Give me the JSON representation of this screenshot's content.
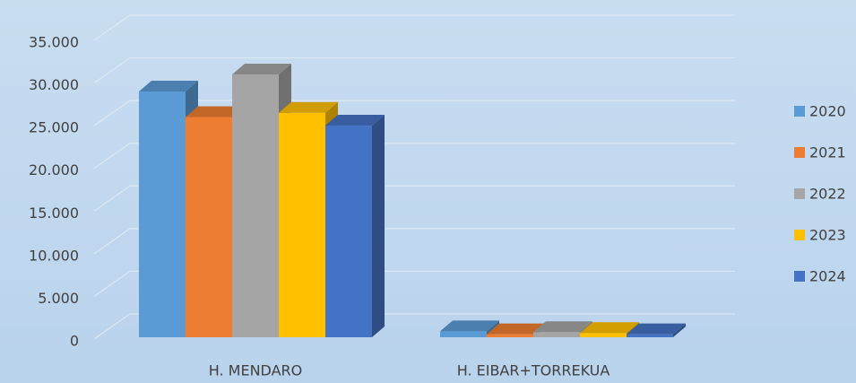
{
  "chart_data": {
    "type": "bar3d",
    "categories": [
      "H. MENDARO",
      "H. EIBAR+TORREKUA"
    ],
    "series": [
      {
        "name": "2020",
        "color": "#5b9bd5",
        "values": [
          28800,
          700
        ]
      },
      {
        "name": "2021",
        "color": "#ed7d31",
        "values": [
          25800,
          350
        ]
      },
      {
        "name": "2022",
        "color": "#a5a5a5",
        "values": [
          30800,
          600
        ]
      },
      {
        "name": "2023",
        "color": "#ffc000",
        "values": [
          26300,
          500
        ]
      },
      {
        "name": "2024",
        "color": "#4472c4",
        "values": [
          24800,
          350
        ]
      }
    ],
    "ylim": [
      0,
      35000
    ],
    "yticks": [
      0,
      {
        "value": 5000,
        "label": "5.000"
      },
      {
        "value": 10000,
        "label": "10.000"
      },
      {
        "value": 15000,
        "label": "15.000"
      },
      {
        "value": 20000,
        "label": "20.000"
      },
      {
        "value": 25000,
        "label": "25.000"
      },
      {
        "value": 30000,
        "label": "30.000"
      },
      {
        "value": 35000,
        "label": "35.000"
      }
    ],
    "grid": true,
    "legend": "right"
  }
}
